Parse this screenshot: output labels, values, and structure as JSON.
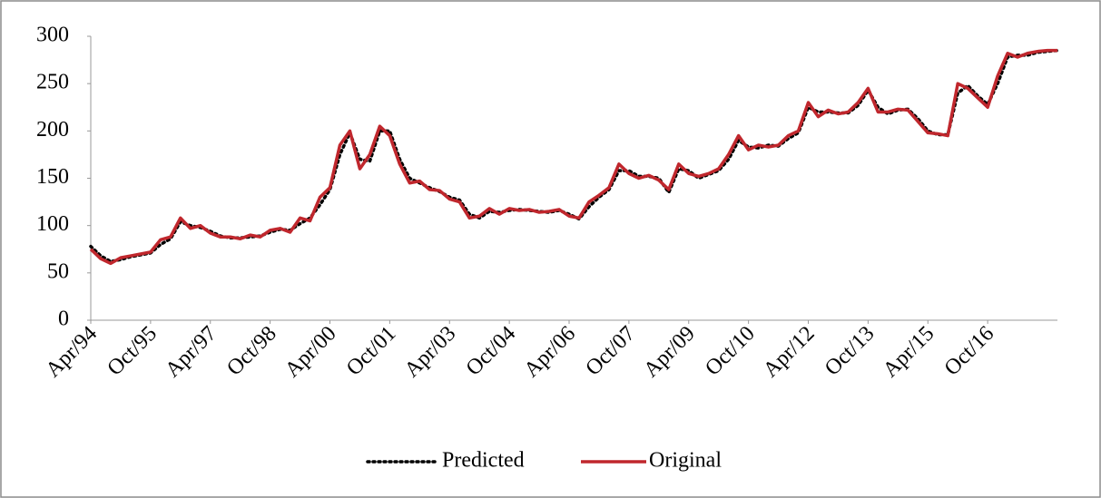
{
  "chart_data": {
    "type": "line",
    "categories": [
      "Apr/94",
      null,
      null,
      null,
      null,
      null,
      "Oct/95",
      null,
      null,
      null,
      null,
      null,
      "Apr/97",
      null,
      null,
      null,
      null,
      null,
      "Oct/98",
      null,
      null,
      null,
      null,
      null,
      "Apr/00",
      null,
      null,
      null,
      null,
      null,
      "Oct/01",
      null,
      null,
      null,
      null,
      null,
      "Apr/03",
      null,
      null,
      null,
      null,
      null,
      "Oct/04",
      null,
      null,
      null,
      null,
      null,
      "Apr/06",
      null,
      null,
      null,
      null,
      null,
      "Oct/07",
      null,
      null,
      null,
      null,
      null,
      "Apr/09",
      null,
      null,
      null,
      null,
      null,
      "Oct/10",
      null,
      null,
      null,
      null,
      null,
      "Apr/12",
      null,
      null,
      null,
      null,
      null,
      "Oct/13",
      null,
      null,
      null,
      null,
      null,
      "Apr/15",
      null,
      null,
      null,
      null,
      null,
      "Oct/16",
      null,
      null,
      null,
      null,
      null,
      null,
      null
    ],
    "series": [
      {
        "name": "Predicted",
        "color": "#000000",
        "style": "dotted",
        "values": [
          78,
          68,
          62,
          64,
          67,
          69,
          71,
          80,
          86,
          104,
          100,
          98,
          94,
          89,
          87,
          87,
          88,
          89,
          93,
          96,
          95,
          102,
          108,
          122,
          138,
          175,
          198,
          170,
          168,
          200,
          200,
          170,
          150,
          145,
          140,
          136,
          130,
          127,
          112,
          108,
          115,
          114,
          116,
          117,
          116,
          115,
          114,
          116,
          112,
          107,
          120,
          130,
          138,
          158,
          158,
          152,
          152,
          150,
          135,
          160,
          158,
          150,
          154,
          158,
          170,
          190,
          183,
          182,
          185,
          184,
          192,
          198,
          225,
          220,
          220,
          219,
          219,
          227,
          243,
          225,
          218,
          222,
          223,
          213,
          200,
          196,
          196,
          240,
          248,
          237,
          228,
          250,
          278,
          280,
          280,
          283,
          284,
          285
        ]
      },
      {
        "name": "Original",
        "color": "#c0272d",
        "style": "solid",
        "values": [
          75,
          65,
          60,
          66,
          68,
          70,
          72,
          85,
          88,
          108,
          97,
          100,
          92,
          88,
          88,
          86,
          90,
          88,
          95,
          97,
          93,
          108,
          105,
          130,
          140,
          185,
          200,
          160,
          175,
          205,
          195,
          165,
          145,
          147,
          138,
          137,
          128,
          125,
          108,
          110,
          118,
          112,
          118,
          116,
          117,
          114,
          115,
          117,
          110,
          108,
          125,
          132,
          140,
          165,
          155,
          150,
          153,
          148,
          138,
          165,
          155,
          152,
          155,
          160,
          175,
          195,
          180,
          185,
          183,
          185,
          195,
          200,
          230,
          215,
          222,
          218,
          220,
          230,
          245,
          220,
          220,
          223,
          222,
          210,
          198,
          197,
          195,
          250,
          245,
          235,
          225,
          258,
          282,
          278,
          282,
          284,
          285,
          285
        ]
      }
    ],
    "ylim": [
      0,
      300
    ],
    "yticks": [
      0,
      50,
      100,
      150,
      200,
      250,
      300
    ],
    "grid": false,
    "legend": "bottom"
  }
}
